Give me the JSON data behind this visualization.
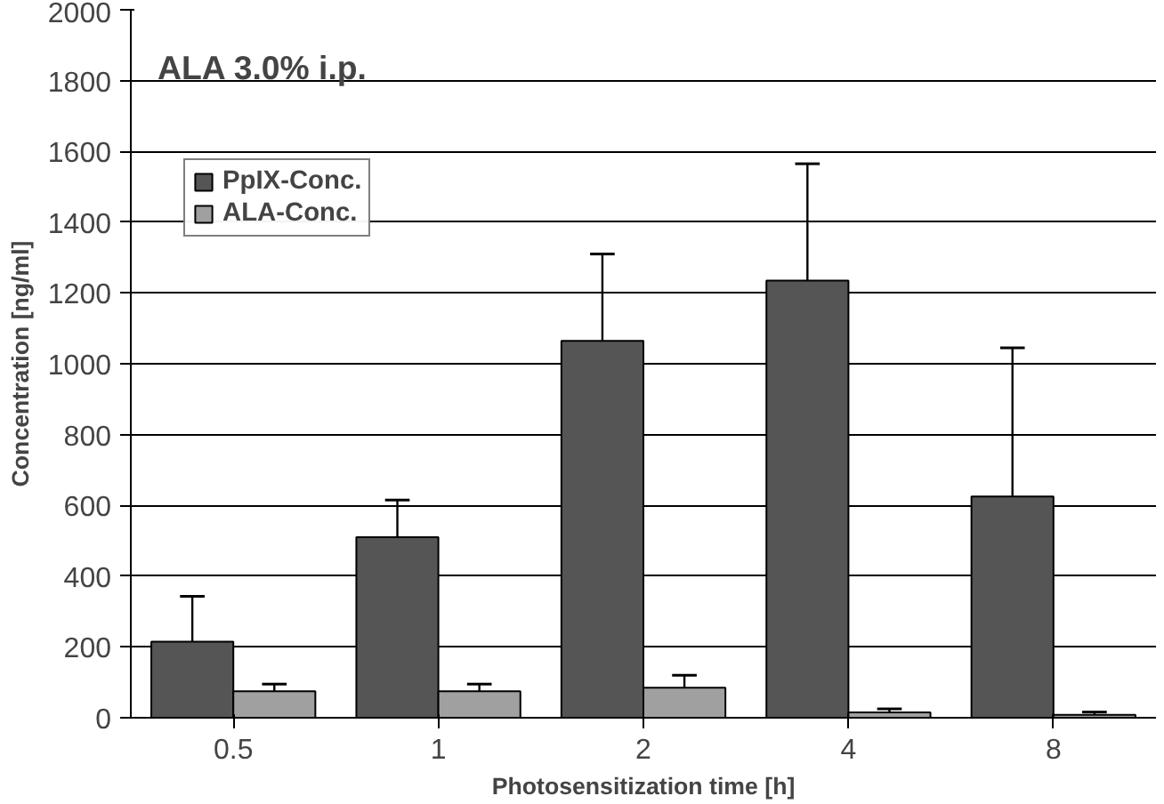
{
  "chart_data": {
    "type": "bar",
    "xlabel": "Photosensitization time [h]",
    "ylabel": "Concentration [ng/ml]",
    "categories": [
      "0.5",
      "1",
      "2",
      "4",
      "8"
    ],
    "series": [
      {
        "name": "PpIX-Conc.",
        "color": "#555555",
        "values": [
          215,
          510,
          1065,
          1235,
          625
        ],
        "errors": [
          [
            215,
            343
          ],
          [
            510,
            615
          ],
          [
            1065,
            1310
          ],
          [
            1235,
            1565
          ],
          [
            625,
            1045
          ]
        ]
      },
      {
        "name": "ALA-Conc.",
        "color": "#a0a0a0",
        "values": [
          75,
          75,
          85,
          15,
          8
        ],
        "errors": [
          [
            75,
            95
          ],
          [
            75,
            95
          ],
          [
            85,
            120
          ],
          [
            15,
            25
          ],
          [
            8,
            16
          ]
        ]
      }
    ],
    "ylim": [
      0,
      2000
    ],
    "yticks": [
      0,
      200,
      400,
      600,
      800,
      1000,
      1200,
      1400,
      1600,
      1800,
      2000
    ],
    "grid": "y",
    "legend": "top left",
    "annotations": [
      "ALA 3.0% i.p."
    ]
  }
}
